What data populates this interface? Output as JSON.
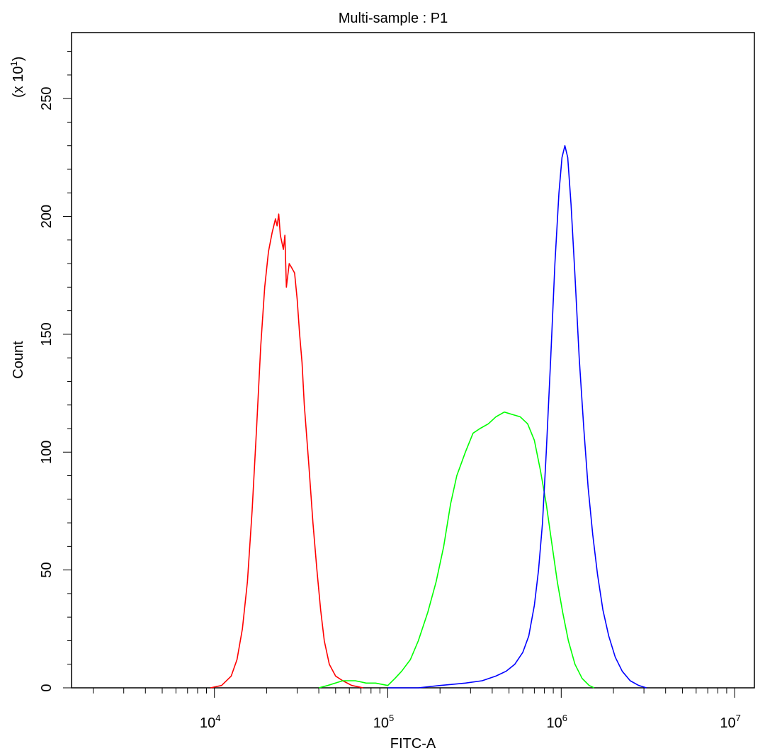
{
  "chart_data": {
    "type": "line",
    "title": "Multi-sample : P1",
    "xlabel": "FITC-A",
    "ylabel": "Count",
    "y_multiplier_label": "(x 10",
    "y_multiplier_exp": "1",
    "y_multiplier_close": ")",
    "x_scale": "log",
    "xlim": [
      1500.0,
      13000000.0
    ],
    "ylim": [
      0,
      278
    ],
    "x_ticks": [
      {
        "base": "10",
        "exp": "4",
        "value": 10000
      },
      {
        "base": "10",
        "exp": "5",
        "value": 100000
      },
      {
        "base": "10",
        "exp": "6",
        "value": 1000000
      },
      {
        "base": "10",
        "exp": "7",
        "value": 10000000
      }
    ],
    "y_ticks": [
      "0",
      "50",
      "100",
      "150",
      "200",
      "250"
    ],
    "y_tick_values": [
      0,
      50,
      100,
      150,
      200,
      250
    ],
    "grid": false,
    "legend": "none",
    "series": [
      {
        "color": "#ff0000",
        "points": [
          [
            9500,
            0
          ],
          [
            11000,
            1
          ],
          [
            12500,
            5
          ],
          [
            13500,
            12
          ],
          [
            14500,
            25
          ],
          [
            15500,
            45
          ],
          [
            16500,
            75
          ],
          [
            17500,
            110
          ],
          [
            18500,
            145
          ],
          [
            19500,
            170
          ],
          [
            20500,
            185
          ],
          [
            21500,
            193
          ],
          [
            22500,
            199
          ],
          [
            23000,
            196
          ],
          [
            23500,
            201
          ],
          [
            24000,
            192
          ],
          [
            25000,
            186
          ],
          [
            25500,
            192
          ],
          [
            26000,
            170
          ],
          [
            27000,
            180
          ],
          [
            28000,
            178
          ],
          [
            29000,
            176
          ],
          [
            30000,
            165
          ],
          [
            31000,
            150
          ],
          [
            32000,
            138
          ],
          [
            33000,
            120
          ],
          [
            35000,
            95
          ],
          [
            37000,
            70
          ],
          [
            39000,
            50
          ],
          [
            41000,
            33
          ],
          [
            43000,
            20
          ],
          [
            46000,
            10
          ],
          [
            50000,
            5
          ],
          [
            55000,
            3
          ],
          [
            62000,
            1
          ],
          [
            72000,
            0
          ]
        ]
      },
      {
        "color": "#00ff00",
        "points": [
          [
            40000,
            0
          ],
          [
            45000,
            1
          ],
          [
            55000,
            3
          ],
          [
            65000,
            3
          ],
          [
            75000,
            2
          ],
          [
            85000,
            2
          ],
          [
            100000,
            1
          ],
          [
            110000,
            4
          ],
          [
            120000,
            7
          ],
          [
            135000,
            12
          ],
          [
            150000,
            20
          ],
          [
            170000,
            32
          ],
          [
            190000,
            45
          ],
          [
            210000,
            60
          ],
          [
            230000,
            78
          ],
          [
            250000,
            90
          ],
          [
            280000,
            100
          ],
          [
            310000,
            108
          ],
          [
            340000,
            110
          ],
          [
            380000,
            112
          ],
          [
            420000,
            115
          ],
          [
            470000,
            117
          ],
          [
            520000,
            116
          ],
          [
            580000,
            115
          ],
          [
            640000,
            112
          ],
          [
            700000,
            105
          ],
          [
            760000,
            92
          ],
          [
            820000,
            78
          ],
          [
            880000,
            62
          ],
          [
            950000,
            45
          ],
          [
            1020000,
            32
          ],
          [
            1100000,
            20
          ],
          [
            1200000,
            10
          ],
          [
            1320000,
            4
          ],
          [
            1450000,
            1
          ],
          [
            1550000,
            0
          ]
        ]
      },
      {
        "color": "#0000ff",
        "points": [
          [
            100000,
            0
          ],
          [
            150000,
            0
          ],
          [
            200000,
            1
          ],
          [
            280000,
            2
          ],
          [
            350000,
            3
          ],
          [
            420000,
            5
          ],
          [
            480000,
            7
          ],
          [
            540000,
            10
          ],
          [
            600000,
            15
          ],
          [
            650000,
            22
          ],
          [
            700000,
            35
          ],
          [
            740000,
            50
          ],
          [
            780000,
            70
          ],
          [
            820000,
            100
          ],
          [
            870000,
            140
          ],
          [
            920000,
            180
          ],
          [
            970000,
            210
          ],
          [
            1010000,
            225
          ],
          [
            1050000,
            230
          ],
          [
            1090000,
            225
          ],
          [
            1140000,
            205
          ],
          [
            1200000,
            175
          ],
          [
            1270000,
            140
          ],
          [
            1350000,
            110
          ],
          [
            1430000,
            85
          ],
          [
            1520000,
            65
          ],
          [
            1620000,
            48
          ],
          [
            1740000,
            33
          ],
          [
            1880000,
            22
          ],
          [
            2050000,
            13
          ],
          [
            2250000,
            7
          ],
          [
            2500000,
            3
          ],
          [
            2800000,
            1
          ],
          [
            3100000,
            0
          ]
        ]
      }
    ]
  }
}
